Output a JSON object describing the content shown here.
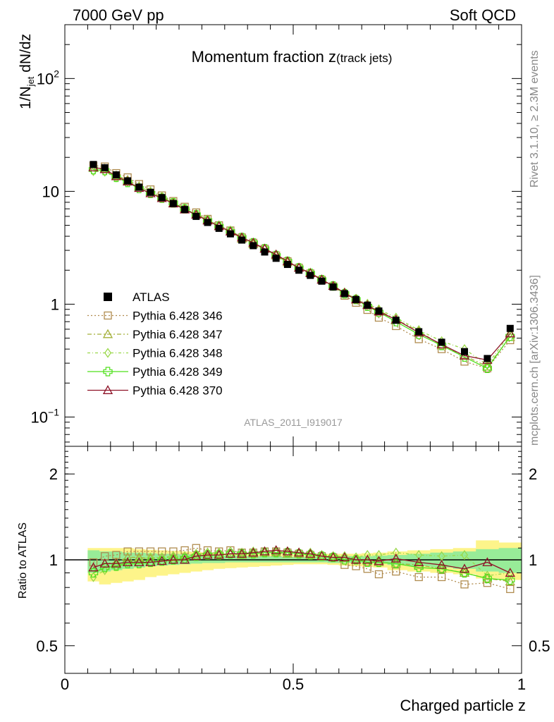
{
  "header": {
    "left": "7000 GeV pp",
    "right": "Soft QCD",
    "rivet": "Rivet 3.1.10, ≥ 2.3M events",
    "mcplots": "mcplots.cern.ch [arXiv:1306.3436]"
  },
  "chart_data": [
    {
      "type": "line",
      "title_main": "Momentum fraction z",
      "title_sub": "(track jets)",
      "ylabel": "1/N",
      "ylabel_sub": "jet",
      "ylabel_rest": " dN/dz",
      "watermark": "ATLAS_2011_I919017",
      "yscale": "log",
      "xlim": [
        0,
        1
      ],
      "ylim": [
        0.055,
        300
      ],
      "yticks": [
        {
          "v": 0.1,
          "base": "10",
          "exp": "−1"
        },
        {
          "v": 1,
          "base": "1",
          "exp": ""
        },
        {
          "v": 10,
          "base": "10",
          "exp": ""
        },
        {
          "v": 100,
          "base": "10",
          "exp": "2"
        }
      ],
      "x": [
        0.0625,
        0.0875,
        0.1125,
        0.1375,
        0.1625,
        0.1875,
        0.2125,
        0.2375,
        0.2625,
        0.2875,
        0.3125,
        0.3375,
        0.3625,
        0.3875,
        0.4125,
        0.4375,
        0.4625,
        0.4875,
        0.5125,
        0.5375,
        0.5625,
        0.5875,
        0.6125,
        0.6375,
        0.6625,
        0.6875,
        0.725,
        0.775,
        0.825,
        0.875,
        0.925,
        0.975
      ],
      "series": [
        {
          "name": "ATLAS",
          "color": "#000000",
          "marker": "filled-square",
          "dash": "",
          "values": [
            17.3,
            16.2,
            14.0,
            12.4,
            10.9,
            9.8,
            8.8,
            7.8,
            6.9,
            6.0,
            5.3,
            4.7,
            4.2,
            3.7,
            3.3,
            2.9,
            2.55,
            2.25,
            2.0,
            1.8,
            1.6,
            1.42,
            1.24,
            1.1,
            0.98,
            0.87,
            0.72,
            0.57,
            0.46,
            0.38,
            0.33,
            0.61
          ]
        },
        {
          "name": "Pythia 6.428 346",
          "color": "#b08c4f",
          "marker": "open-square",
          "dash": "2,3",
          "values": [
            16.9,
            16.6,
            14.5,
            13.3,
            11.6,
            10.4,
            9.2,
            8.2,
            7.3,
            6.5,
            5.7,
            5.0,
            4.5,
            3.9,
            3.5,
            3.1,
            2.7,
            2.4,
            2.1,
            1.87,
            1.64,
            1.44,
            1.19,
            1.03,
            0.89,
            0.76,
            0.64,
            0.49,
            0.4,
            0.31,
            0.27,
            0.48
          ]
        },
        {
          "name": "Pythia 6.428 347",
          "color": "#a4b03a",
          "marker": "open-triangle",
          "dash": "6,3,2,3",
          "values": [
            16.3,
            15.9,
            13.8,
            12.6,
            11.1,
            9.9,
            8.9,
            7.9,
            7.1,
            6.2,
            5.6,
            4.9,
            4.4,
            3.8,
            3.4,
            3.1,
            2.7,
            2.35,
            2.1,
            1.9,
            1.65,
            1.45,
            1.26,
            1.1,
            0.98,
            0.88,
            0.73,
            0.58,
            0.43,
            0.35,
            0.28,
            0.51
          ]
        },
        {
          "name": "Pythia 6.428 348",
          "color": "#9ad84a",
          "marker": "open-diamond",
          "dash": "4,3,1,3",
          "values": [
            15.1,
            14.9,
            13.3,
            12.2,
            11.0,
            10.0,
            9.0,
            8.0,
            7.1,
            6.3,
            5.6,
            5.0,
            4.5,
            3.9,
            3.5,
            3.1,
            2.75,
            2.4,
            2.1,
            1.9,
            1.65,
            1.45,
            1.27,
            1.12,
            1.01,
            0.9,
            0.76,
            0.59,
            0.47,
            0.4,
            0.29,
            0.55
          ]
        },
        {
          "name": "Pythia 6.428 349",
          "color": "#4fe01a",
          "marker": "open-cross",
          "dash": "",
          "values": [
            15.6,
            15.3,
            13.3,
            12.0,
            10.6,
            9.6,
            8.7,
            7.9,
            7.0,
            6.2,
            5.5,
            4.9,
            4.4,
            3.9,
            3.5,
            3.1,
            2.7,
            2.4,
            2.1,
            1.88,
            1.65,
            1.45,
            1.24,
            1.1,
            0.96,
            0.85,
            0.7,
            0.54,
            0.43,
            0.34,
            0.27,
            0.52
          ]
        },
        {
          "name": "Pythia 6.428 370",
          "color": "#8e1328",
          "marker": "open-triangle",
          "dash": "",
          "values": [
            16.3,
            15.7,
            13.6,
            12.2,
            10.7,
            9.6,
            8.7,
            7.8,
            6.9,
            6.2,
            5.5,
            4.9,
            4.4,
            3.9,
            3.5,
            3.1,
            2.75,
            2.4,
            2.1,
            1.88,
            1.65,
            1.45,
            1.26,
            1.1,
            0.98,
            0.86,
            0.73,
            0.56,
            0.44,
            0.35,
            0.32,
            0.55
          ]
        }
      ]
    },
    {
      "type": "line",
      "ylabel": "Ratio to ATLAS",
      "xlabel": "Charged particle z",
      "yscale": "log",
      "xlim": [
        0,
        1
      ],
      "ylim": [
        0.4,
        2.5
      ],
      "yticks": [
        {
          "v": 0.5,
          "label": "0.5"
        },
        {
          "v": 1,
          "label": "1"
        },
        {
          "v": 2,
          "label": "2"
        }
      ],
      "xticks": [
        {
          "v": 0,
          "label": "0"
        },
        {
          "v": 0.5,
          "label": "0.5"
        },
        {
          "v": 1,
          "label": "1"
        }
      ],
      "band_inner": {
        "color": "#98ec98",
        "lo": [
          0.9,
          0.91,
          0.92,
          0.93,
          0.94,
          0.95,
          0.955,
          0.96,
          0.965,
          0.97,
          0.975,
          0.975,
          0.98,
          0.98,
          0.98,
          0.98,
          0.98,
          0.98,
          0.98,
          0.98,
          0.98,
          0.975,
          0.975,
          0.975,
          0.975,
          0.97,
          0.96,
          0.95,
          0.94,
          0.93,
          0.91,
          0.9
        ],
        "hi": [
          1.08,
          1.07,
          1.07,
          1.06,
          1.06,
          1.055,
          1.05,
          1.05,
          1.045,
          1.04,
          1.04,
          1.035,
          1.035,
          1.03,
          1.03,
          1.03,
          1.03,
          1.025,
          1.025,
          1.025,
          1.025,
          1.025,
          1.03,
          1.03,
          1.03,
          1.035,
          1.04,
          1.05,
          1.06,
          1.07,
          1.09,
          1.1
        ]
      },
      "band_outer": {
        "color": "#fdf48a",
        "lo": [
          0.84,
          0.82,
          0.83,
          0.84,
          0.85,
          0.87,
          0.88,
          0.89,
          0.9,
          0.91,
          0.92,
          0.93,
          0.935,
          0.94,
          0.945,
          0.95,
          0.955,
          0.96,
          0.965,
          0.965,
          0.965,
          0.96,
          0.955,
          0.95,
          0.945,
          0.94,
          0.92,
          0.91,
          0.9,
          0.89,
          0.86,
          0.85
        ],
        "hi": [
          1.1,
          1.1,
          1.1,
          1.1,
          1.09,
          1.085,
          1.08,
          1.075,
          1.07,
          1.065,
          1.06,
          1.055,
          1.05,
          1.05,
          1.05,
          1.05,
          1.05,
          1.045,
          1.045,
          1.045,
          1.05,
          1.05,
          1.05,
          1.05,
          1.055,
          1.06,
          1.07,
          1.08,
          1.09,
          1.1,
          1.17,
          1.15
        ]
      },
      "series": [
        {
          "name": "Pythia 6.428 346",
          "values": [
            0.98,
            1.03,
            1.04,
            1.07,
            1.07,
            1.07,
            1.07,
            1.07,
            1.08,
            1.1,
            1.08,
            1.07,
            1.08,
            1.06,
            1.06,
            1.07,
            1.07,
            1.06,
            1.05,
            1.04,
            1.03,
            1.02,
            0.96,
            0.95,
            0.93,
            0.89,
            0.91,
            0.87,
            0.87,
            0.82,
            0.83,
            0.79
          ]
        },
        {
          "name": "Pythia 6.428 347",
          "values": [
            0.94,
            0.97,
            0.98,
            1.02,
            1.02,
            1.01,
            1.02,
            1.02,
            1.03,
            1.04,
            1.06,
            1.05,
            1.05,
            1.04,
            1.05,
            1.06,
            1.06,
            1.05,
            1.05,
            1.04,
            1.03,
            1.03,
            1.02,
            1.0,
            1.0,
            0.98,
            0.97,
            0.96,
            0.93,
            0.9,
            0.86,
            0.84
          ]
        },
        {
          "name": "Pythia 6.428 348",
          "values": [
            0.87,
            0.92,
            0.95,
            0.98,
            1.0,
            1.02,
            1.02,
            1.03,
            1.03,
            1.05,
            1.06,
            1.06,
            1.07,
            1.06,
            1.07,
            1.07,
            1.08,
            1.07,
            1.06,
            1.06,
            1.04,
            1.03,
            1.03,
            1.02,
            1.04,
            1.04,
            1.06,
            1.04,
            1.03,
            1.04,
            0.88,
            0.9
          ]
        },
        {
          "name": "Pythia 6.428 349",
          "values": [
            0.9,
            0.94,
            0.95,
            0.97,
            0.97,
            0.98,
            0.99,
            1.0,
            1.01,
            1.03,
            1.04,
            1.04,
            1.05,
            1.05,
            1.05,
            1.06,
            1.06,
            1.06,
            1.05,
            1.04,
            1.03,
            1.02,
            1.0,
            1.0,
            0.98,
            0.98,
            0.97,
            0.94,
            0.93,
            0.9,
            0.86,
            0.85
          ]
        },
        {
          "name": "Pythia 6.428 370",
          "values": [
            0.94,
            0.97,
            0.97,
            0.98,
            0.98,
            0.98,
            0.99,
            1.0,
            1.0,
            1.03,
            1.04,
            1.04,
            1.05,
            1.05,
            1.06,
            1.07,
            1.08,
            1.07,
            1.06,
            1.05,
            1.03,
            1.02,
            1.02,
            1.0,
            1.0,
            0.99,
            1.01,
            0.98,
            0.96,
            0.93,
            0.98,
            0.9
          ]
        }
      ]
    }
  ]
}
